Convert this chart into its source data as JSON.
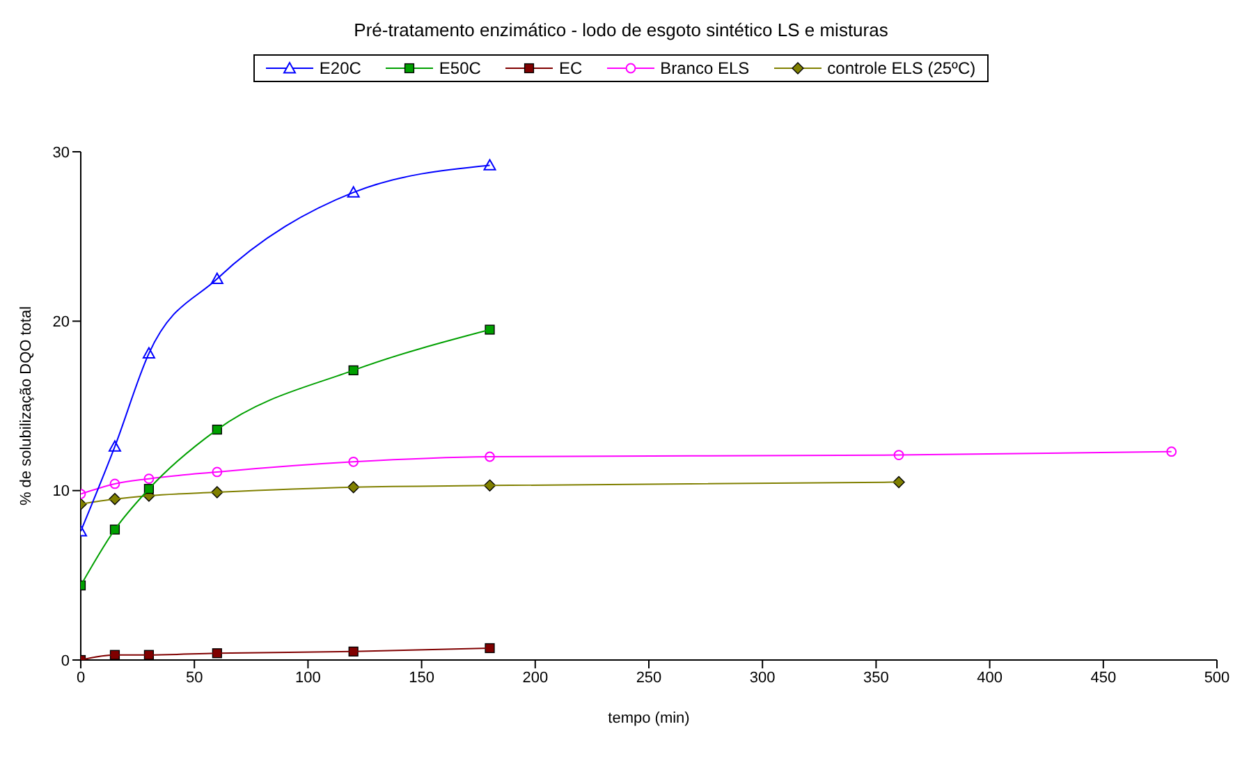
{
  "chart_data": {
    "type": "line",
    "title": "Pré-tratamento enzimático - lodo de esgoto sintético LS e misturas",
    "xlabel": "tempo (min)",
    "ylabel": "% de solubilização DQO total",
    "xlim": [
      0,
      500
    ],
    "xticks": [
      0,
      50,
      100,
      150,
      200,
      250,
      300,
      350,
      400,
      450,
      500
    ],
    "ylim": [
      0,
      30
    ],
    "yticks": [
      0,
      10,
      20,
      30
    ],
    "grid": false,
    "legend": "top",
    "line_style": "solid",
    "series": [
      {
        "name": "E20C",
        "color": "#0000ff",
        "marker": "triangle",
        "x": [
          0,
          15,
          30,
          60,
          120,
          180
        ],
        "values": [
          7.6,
          12.6,
          18.1,
          22.5,
          27.6,
          29.2
        ]
      },
      {
        "name": "E50C",
        "color": "#00a000",
        "marker": "square",
        "x": [
          0,
          15,
          30,
          60,
          120,
          180
        ],
        "values": [
          4.4,
          7.7,
          10.1,
          13.6,
          17.1,
          19.5
        ]
      },
      {
        "name": "EC",
        "color": "#800000",
        "marker": "square",
        "x": [
          0,
          15,
          30,
          60,
          120,
          180
        ],
        "values": [
          0,
          0.3,
          0.3,
          0.4,
          0.5,
          0.7
        ]
      },
      {
        "name": "Branco ELS",
        "color": "#ff00ff",
        "marker": "circle",
        "x": [
          0,
          15,
          30,
          60,
          120,
          180,
          360,
          480
        ],
        "values": [
          9.8,
          10.4,
          10.7,
          11.1,
          11.7,
          12,
          12.1,
          12.3
        ]
      },
      {
        "name": "controle ELS (25ºC)",
        "color": "#808000",
        "marker": "diamond",
        "x": [
          0,
          15,
          30,
          60,
          120,
          180,
          360
        ],
        "values": [
          9.2,
          9.5,
          9.7,
          9.9,
          10.2,
          10.3,
          10.5
        ]
      }
    ]
  }
}
